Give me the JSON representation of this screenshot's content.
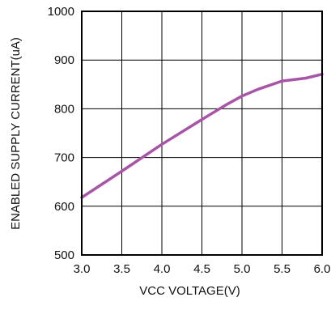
{
  "chart_data": {
    "type": "line",
    "title": "",
    "xlabel": "VCC VOLTAGE(V)",
    "ylabel": "ENABLED SUPPLY CURRENT(uA)",
    "xlim": [
      3.0,
      6.0
    ],
    "ylim": [
      500,
      1000
    ],
    "x_ticks": [
      3.0,
      3.5,
      4.0,
      4.5,
      5.0,
      5.5,
      6.0
    ],
    "x_tick_labels": [
      "3.0",
      "3.5",
      "4.0",
      "4.5",
      "5.0",
      "5.5",
      "6.0"
    ],
    "y_ticks": [
      500,
      600,
      700,
      800,
      900,
      1000
    ],
    "y_tick_labels": [
      "500",
      "600",
      "700",
      "800",
      "900",
      "1000"
    ],
    "grid": true,
    "legend": "none",
    "series": [
      {
        "color": "#a855a8",
        "x": [
          3.0,
          3.5,
          4.0,
          4.5,
          4.8,
          5.0,
          5.2,
          5.5,
          5.8,
          6.0
        ],
        "y": [
          618,
          672,
          727,
          778,
          808,
          826,
          840,
          857,
          863,
          871
        ]
      }
    ]
  }
}
